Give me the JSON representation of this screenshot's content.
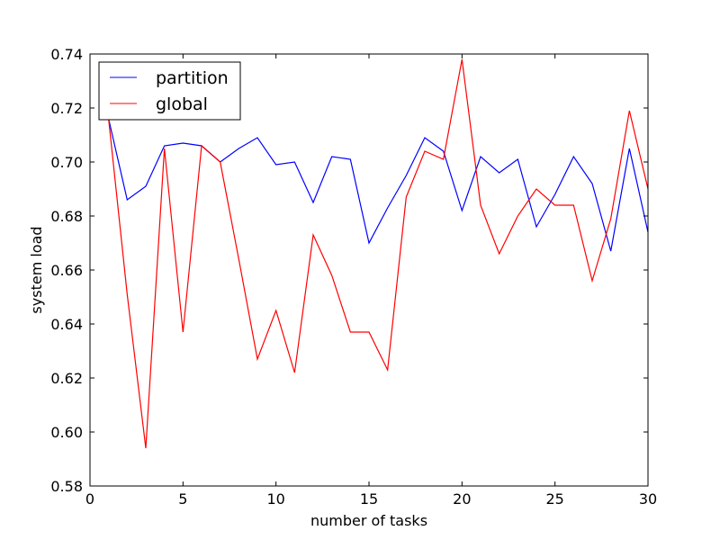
{
  "chart_data": {
    "type": "line",
    "xlabel": "number of tasks",
    "ylabel": "system load",
    "xlim": [
      0,
      30
    ],
    "ylim": [
      0.58,
      0.74
    ],
    "xticks": [
      0,
      5,
      10,
      15,
      20,
      25,
      30
    ],
    "xtick_labels": [
      "0",
      "5",
      "10",
      "15",
      "20",
      "25",
      "30"
    ],
    "yticks": [
      0.58,
      0.6,
      0.62,
      0.64,
      0.66,
      0.68,
      0.7,
      0.72,
      0.74
    ],
    "ytick_labels": [
      "0.58",
      "0.60",
      "0.62",
      "0.64",
      "0.66",
      "0.68",
      "0.70",
      "0.72",
      "0.74"
    ],
    "grid": false,
    "legend": "top-left",
    "x": [
      1,
      2,
      3,
      4,
      5,
      6,
      7,
      8,
      9,
      10,
      11,
      12,
      13,
      14,
      15,
      16,
      17,
      18,
      19,
      20,
      21,
      22,
      23,
      24,
      25,
      26,
      27,
      28,
      29,
      30
    ],
    "series": [
      {
        "name": "partition",
        "color": "#0000ff",
        "values": [
          0.716,
          0.686,
          0.691,
          0.706,
          0.707,
          0.706,
          0.7,
          0.705,
          0.709,
          0.699,
          0.7,
          0.685,
          0.702,
          0.701,
          0.67,
          0.683,
          0.695,
          0.709,
          0.704,
          0.682,
          0.702,
          0.696,
          0.701,
          0.676,
          0.688,
          0.702,
          0.692,
          0.667,
          0.705,
          0.674
        ]
      },
      {
        "name": "global",
        "color": "#ff0000",
        "values": [
          0.716,
          0.651,
          0.594,
          0.705,
          0.637,
          0.706,
          0.7,
          0.664,
          0.627,
          0.645,
          0.622,
          0.673,
          0.658,
          0.637,
          0.637,
          0.623,
          0.687,
          0.704,
          0.701,
          0.738,
          0.684,
          0.666,
          0.68,
          0.69,
          0.684,
          0.684,
          0.656,
          0.679,
          0.719,
          0.69
        ]
      }
    ]
  }
}
